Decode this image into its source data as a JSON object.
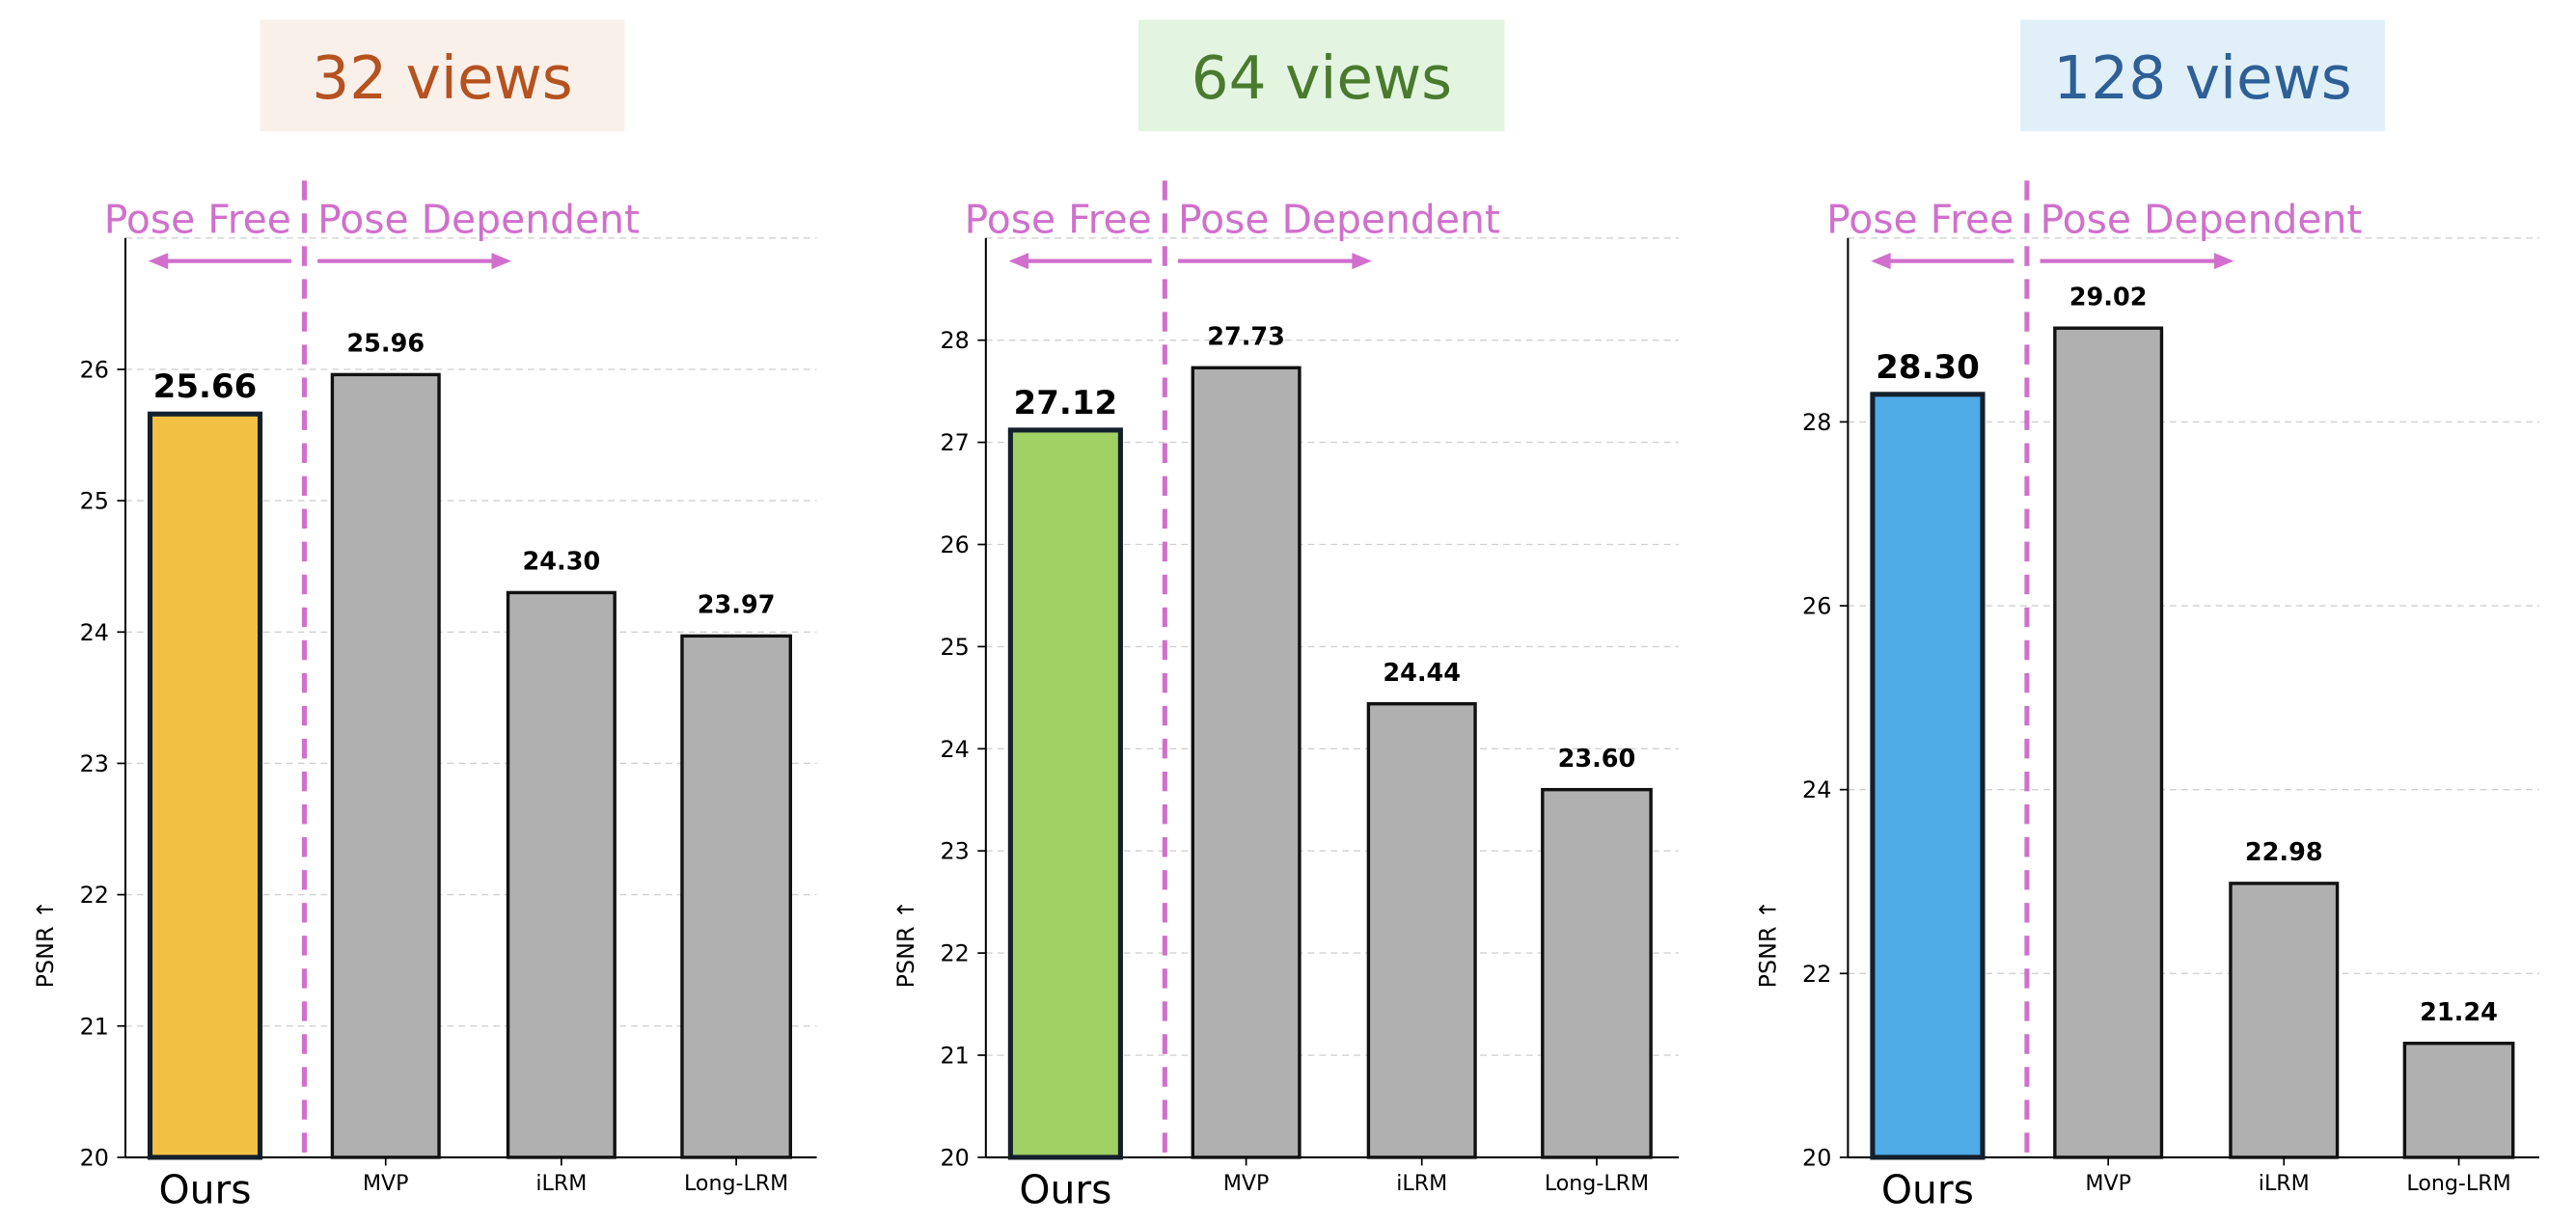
{
  "chart_data": [
    {
      "type": "bar",
      "title": "32 views",
      "title_color": "#b5521f",
      "title_bg": "#faf0ea",
      "ylabel": "PSNR ↑",
      "ylim": [
        20,
        27
      ],
      "yticks": [
        20,
        21,
        22,
        23,
        24,
        25,
        26
      ],
      "grid": true,
      "categories": [
        "Ours",
        "MVP",
        "iLRM",
        "Long-LRM"
      ],
      "values": [
        25.66,
        25.96,
        24.3,
        23.97
      ],
      "data_labels": [
        "25.66",
        "25.96",
        "24.30",
        "23.97"
      ],
      "highlight_color": "#f2c144",
      "other_color": "#b0b0b0"
    },
    {
      "type": "bar",
      "title": "64 views",
      "title_color": "#4a7a2e",
      "title_bg": "#e3f5e1",
      "ylabel": "PSNR ↑",
      "ylim": [
        20,
        29
      ],
      "yticks": [
        20,
        21,
        22,
        23,
        24,
        25,
        26,
        27,
        28
      ],
      "grid": true,
      "categories": [
        "Ours",
        "MVP",
        "iLRM",
        "Long-LRM"
      ],
      "values": [
        27.12,
        27.73,
        24.44,
        23.6
      ],
      "data_labels": [
        "27.12",
        "27.73",
        "24.44",
        "23.60"
      ],
      "highlight_color": "#a1d064",
      "other_color": "#b0b0b0"
    },
    {
      "type": "bar",
      "title": "128 views",
      "title_color": "#2e5f96",
      "title_bg": "#e1f0f8",
      "ylabel": "PSNR ↑",
      "ylim": [
        20,
        30
      ],
      "yticks": [
        20,
        22,
        24,
        26,
        28
      ],
      "grid": true,
      "categories": [
        "Ours",
        "MVP",
        "iLRM",
        "Long-LRM"
      ],
      "values": [
        28.3,
        29.02,
        22.98,
        21.24
      ],
      "data_labels": [
        "28.30",
        "29.02",
        "22.98",
        "21.24"
      ],
      "highlight_color": "#4eabe6",
      "other_color": "#b0b0b0"
    }
  ],
  "annotations": {
    "left_label": "Pose Free",
    "right_label": "Pose Dependent",
    "color": "#d070cc"
  }
}
